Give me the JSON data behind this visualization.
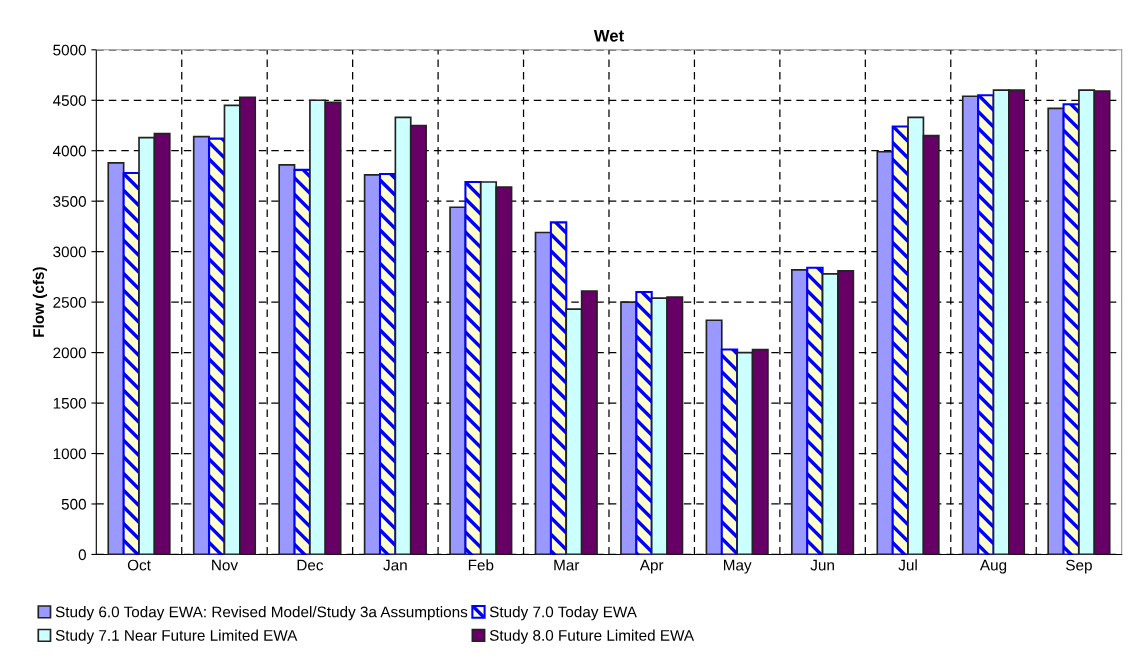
{
  "chart_data": {
    "type": "bar",
    "title": "Wet",
    "ylabel": "Flow (cfs)",
    "categories": [
      "Oct",
      "Nov",
      "Dec",
      "Jan",
      "Feb",
      "Mar",
      "Apr",
      "May",
      "Jun",
      "Jul",
      "Aug",
      "Sep"
    ],
    "series": [
      {
        "name": "Study 6.0 Today EWA: Revised Model/Study 3a Assumptions",
        "color": "#9999ff",
        "values": [
          3880,
          4140,
          3860,
          3760,
          3440,
          3190,
          2500,
          2320,
          2820,
          3990,
          4540,
          4420
        ]
      },
      {
        "name": "Study 7.0 Today EWA",
        "color": "#0000ff",
        "values": [
          3780,
          4120,
          3810,
          3770,
          3690,
          3290,
          2600,
          2030,
          2840,
          4240,
          4550,
          4460
        ]
      },
      {
        "name": "Study 7.1 Near Future Limited EWA",
        "color": "#ccffff",
        "values": [
          4130,
          4450,
          4500,
          4330,
          3690,
          2430,
          2540,
          2000,
          2780,
          4330,
          4600,
          4600
        ]
      },
      {
        "name": "Study 8.0 Future Limited EWA",
        "color": "#660066",
        "values": [
          4170,
          4530,
          4480,
          4250,
          3640,
          2610,
          2550,
          2030,
          2810,
          4150,
          4600,
          4590
        ]
      }
    ],
    "ylim": [
      0,
      5000
    ],
    "yticks": [
      0,
      500,
      1000,
      1500,
      2000,
      2500,
      3000,
      3500,
      4000,
      4500,
      5000
    ],
    "grid": true,
    "legend": "bottom"
  }
}
